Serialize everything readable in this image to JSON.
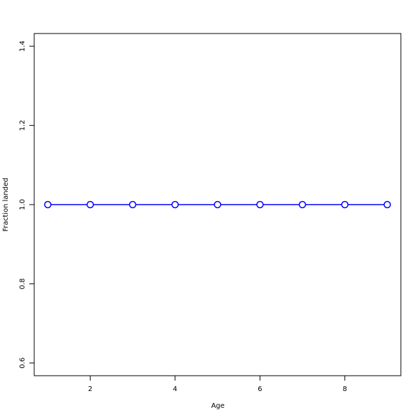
{
  "chart_data": {
    "type": "line",
    "title": "",
    "xlabel": "Age",
    "ylabel": "Fraction landed",
    "x": [
      1,
      2,
      3,
      4,
      5,
      6,
      7,
      8,
      9
    ],
    "series": [
      {
        "values": [
          1,
          1,
          1,
          1,
          1,
          1,
          1,
          1,
          1
        ],
        "color": "#0000ff",
        "marker": "open-circle"
      }
    ],
    "xlim": [
      0.68,
      9.32
    ],
    "ylim": [
      0.568,
      1.432
    ],
    "xticks": [
      2,
      4,
      6,
      8
    ],
    "xtick_labels": [
      "2",
      "4",
      "6",
      "8"
    ],
    "yticks": [
      0.6,
      0.8,
      1.0,
      1.2,
      1.4
    ],
    "ytick_labels": [
      "0.6",
      "0.8",
      "1.0",
      "1.2",
      "1.4"
    ],
    "grid": false,
    "legend": "none"
  }
}
